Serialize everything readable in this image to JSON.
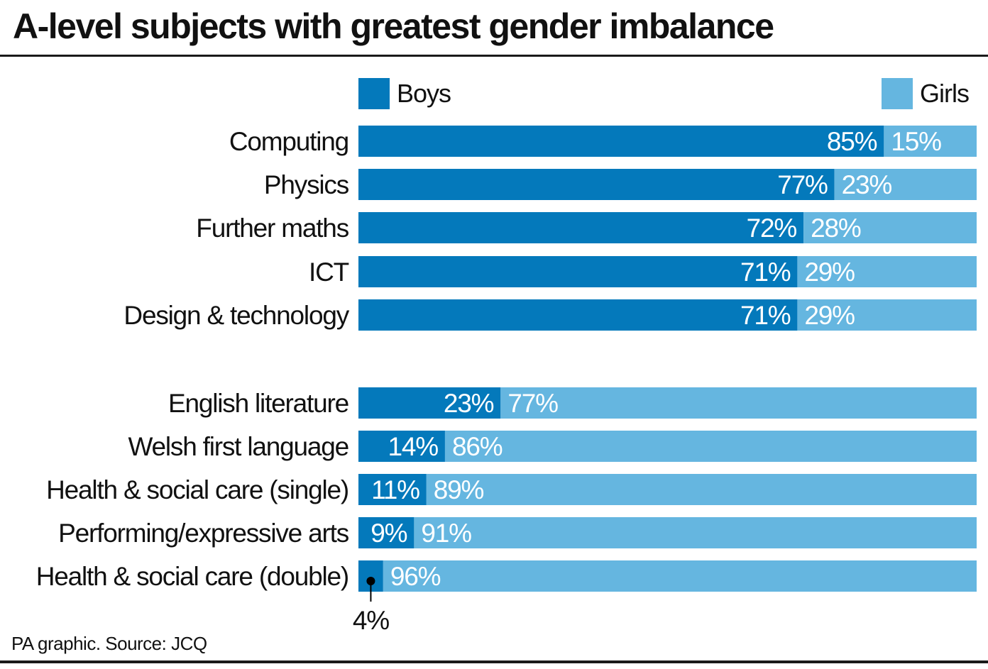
{
  "colors": {
    "boys": "#0479bb",
    "girls": "#65b6e0"
  },
  "footer": {
    "source": "PA graphic. Source: JCQ"
  },
  "chart_data": {
    "type": "bar",
    "stacked": true,
    "orientation": "horizontal",
    "title": "A-level subjects with greatest gender imbalance",
    "xlabel": "",
    "ylabel": "",
    "xlim": [
      0,
      100
    ],
    "unit": "%",
    "grid": false,
    "legend": {
      "placement": "top",
      "entries": [
        "Boys",
        "Girls"
      ]
    },
    "groups": [
      {
        "name": "boy-dominated",
        "categories": [
          "Computing",
          "Physics",
          "Further maths",
          "ICT",
          "Design & technology"
        ]
      },
      {
        "name": "girl-dominated",
        "categories": [
          "English literature",
          "Welsh first language",
          "Health & social care (single)",
          "Performing/expressive arts",
          "Health & social care (double)"
        ]
      }
    ],
    "categories": [
      "Computing",
      "Physics",
      "Further maths",
      "ICT",
      "Design & technology",
      "English literature",
      "Welsh first language",
      "Health & social care (single)",
      "Performing/expressive arts",
      "Health & social care (double)"
    ],
    "series": [
      {
        "name": "Boys",
        "values": [
          85,
          77,
          72,
          71,
          71,
          23,
          14,
          11,
          9,
          4
        ]
      },
      {
        "name": "Girls",
        "values": [
          15,
          23,
          28,
          29,
          29,
          77,
          86,
          89,
          91,
          96
        ]
      }
    ],
    "annotations": [
      {
        "category": "Health & social care (double)",
        "series": "Boys",
        "text": "4%",
        "style": "callout-below"
      }
    ]
  }
}
